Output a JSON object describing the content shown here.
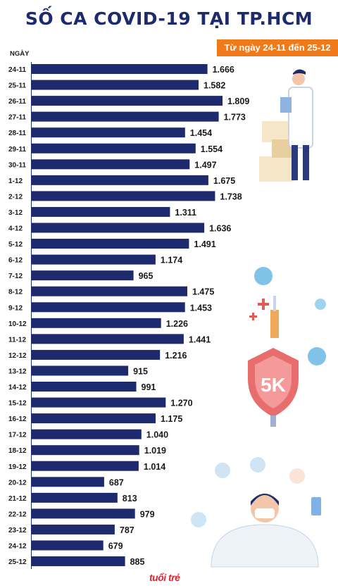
{
  "header": {
    "title": "SỐ CA COVID-19 TẠI TP.HCM",
    "subtitle": "Từ ngày 24-11 đến 25-12"
  },
  "footer": {
    "logo_text": "tuổi trẻ"
  },
  "chart_data": {
    "type": "bar",
    "orientation": "horizontal",
    "title": "SỐ CA COVID-19 TẠI TP.HCM",
    "subtitle": "Từ ngày 24-11 đến 25-12",
    "ylabel": "NGÀY",
    "xlabel": "",
    "grid": false,
    "bar_color": "#1e2a6e",
    "categories": [
      "24-11",
      "25-11",
      "26-11",
      "27-11",
      "28-11",
      "29-11",
      "30-11",
      "1-12",
      "2-12",
      "3-12",
      "4-12",
      "5-12",
      "6-12",
      "7-12",
      "8-12",
      "9-12",
      "10-12",
      "11-12",
      "12-12",
      "13-12",
      "14-12",
      "15-12",
      "16-12",
      "17-12",
      "18-12",
      "19-12",
      "20-12",
      "21-12",
      "22-12",
      "23-12",
      "24-12",
      "25-12"
    ],
    "values": [
      1666,
      1582,
      1809,
      1773,
      1454,
      1554,
      1497,
      1675,
      1738,
      1311,
      1636,
      1491,
      1174,
      965,
      1475,
      1453,
      1226,
      1441,
      1216,
      915,
      991,
      1270,
      1175,
      1040,
      1019,
      1014,
      687,
      813,
      979,
      787,
      679,
      885
    ],
    "value_labels": [
      "1.666",
      "1.582",
      "1.809",
      "1.773",
      "1.454",
      "1.554",
      "1.497",
      "1.675",
      "1.738",
      "1.311",
      "1.636",
      "1.491",
      "1.174",
      "965",
      "1.475",
      "1.453",
      "1.226",
      "1.441",
      "1.216",
      "915",
      "991",
      "1.270",
      "1.175",
      "1.040",
      "1.019",
      "1.014",
      "687",
      "813",
      "979",
      "787",
      "679",
      "885"
    ],
    "xlim": [
      0,
      1809
    ]
  }
}
